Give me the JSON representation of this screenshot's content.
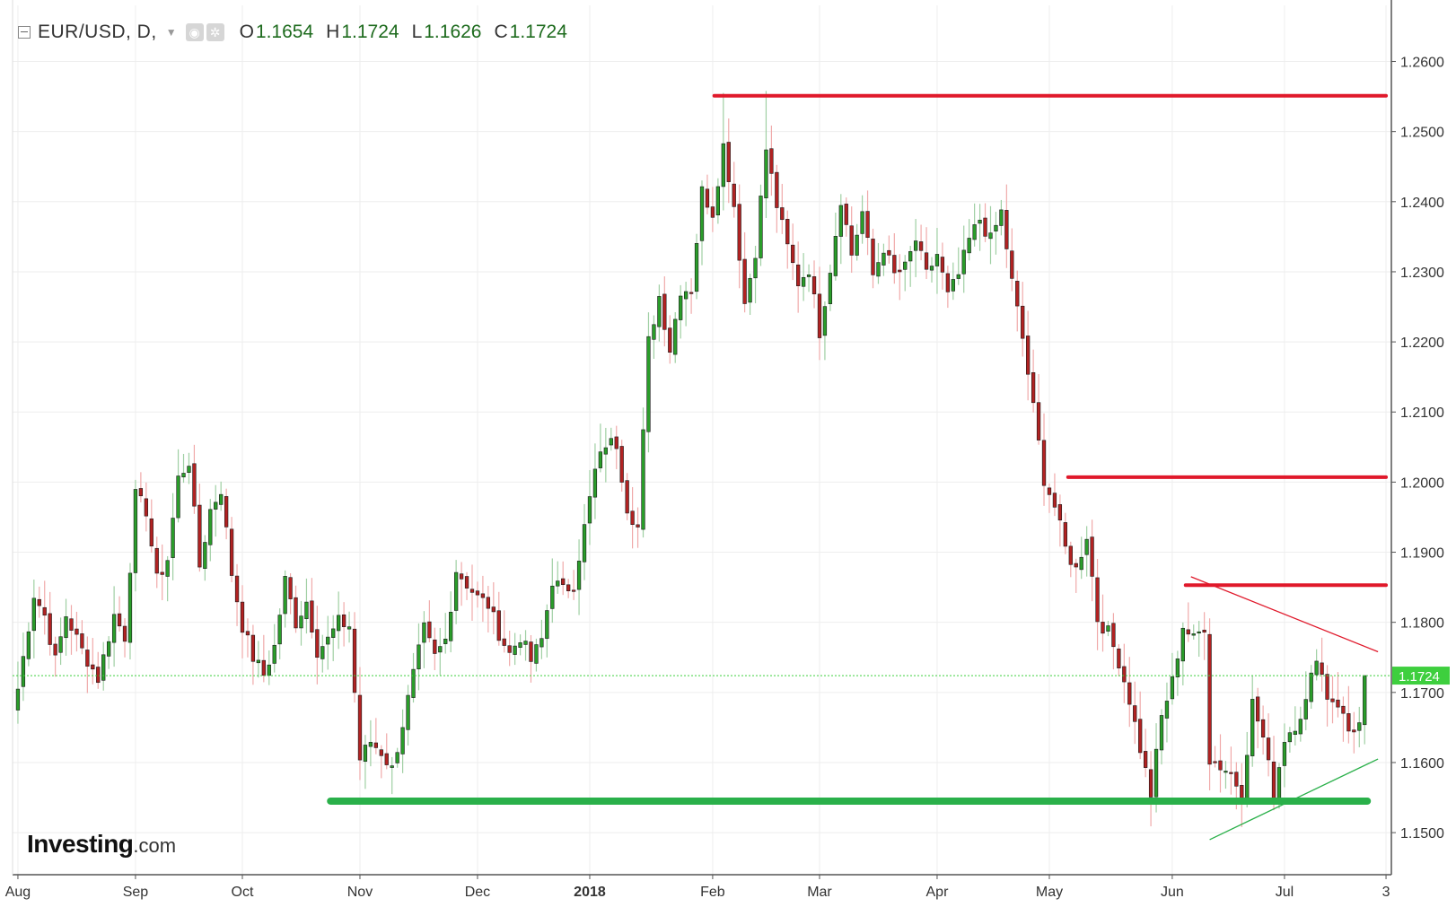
{
  "legend": {
    "symbol": "EUR/USD, D,",
    "o_key": "O",
    "o_val": "1.1654",
    "h_key": "H",
    "h_val": "1.1724",
    "l_key": "L",
    "l_val": "1.1626",
    "c_key": "C",
    "c_val": "1.1724"
  },
  "brand": {
    "name": "Investing",
    "suffix": ".com"
  },
  "colors": {
    "up": "#2a9d2a",
    "down": "#b22222",
    "resistance": "#e0192b",
    "support": "#2ab04a",
    "price_marker": "#3ecf3e",
    "grid": "#eeeeee"
  },
  "chart_data": {
    "type": "candlestick",
    "instrument": "EUR/USD",
    "timeframe": "D",
    "ylim": [
      1.144,
      1.268
    ],
    "y_ticks": [
      {
        "value": 1.26,
        "label": "1.2600"
      },
      {
        "value": 1.25,
        "label": "1.2500"
      },
      {
        "value": 1.24,
        "label": "1.2400"
      },
      {
        "value": 1.23,
        "label": "1.2300"
      },
      {
        "value": 1.22,
        "label": "1.2200"
      },
      {
        "value": 1.21,
        "label": "1.2100"
      },
      {
        "value": 1.2,
        "label": "1.2000"
      },
      {
        "value": 1.19,
        "label": "1.1900"
      },
      {
        "value": 1.18,
        "label": "1.1800"
      },
      {
        "value": 1.17,
        "label": "1.1700"
      },
      {
        "value": 1.16,
        "label": "1.1600"
      },
      {
        "value": 1.15,
        "label": "1.1500"
      }
    ],
    "x_ticks": [
      {
        "index": 0,
        "label": "Aug",
        "bold": false
      },
      {
        "index": 22,
        "label": "Sep",
        "bold": false
      },
      {
        "index": 42,
        "label": "Oct",
        "bold": false
      },
      {
        "index": 64,
        "label": "Nov",
        "bold": false
      },
      {
        "index": 86,
        "label": "Dec",
        "bold": false
      },
      {
        "index": 107,
        "label": "2018",
        "bold": true
      },
      {
        "index": 130,
        "label": "Feb",
        "bold": false
      },
      {
        "index": 150,
        "label": "Mar",
        "bold": false
      },
      {
        "index": 172,
        "label": "Apr",
        "bold": false
      },
      {
        "index": 193,
        "label": "May",
        "bold": false
      },
      {
        "index": 216,
        "label": "Jun",
        "bold": false
      },
      {
        "index": 237,
        "label": "Jul",
        "bold": false
      },
      {
        "index": 256,
        "label": "3",
        "bold": false
      }
    ],
    "x_range": [
      -1,
      257
    ],
    "last_price": {
      "value": 1.1724,
      "label": "1.1724"
    },
    "keypoints": [
      [
        0,
        1.1705
      ],
      [
        3,
        1.184
      ],
      [
        5,
        1.181
      ],
      [
        7,
        1.1745
      ],
      [
        9,
        1.181
      ],
      [
        12,
        1.176
      ],
      [
        15,
        1.172
      ],
      [
        18,
        1.181
      ],
      [
        20,
        1.178
      ],
      [
        22,
        1.198
      ],
      [
        24,
        1.196
      ],
      [
        26,
        1.186
      ],
      [
        28,
        1.189
      ],
      [
        30,
        1.2005
      ],
      [
        32,
        1.203
      ],
      [
        34,
        1.188
      ],
      [
        36,
        1.196
      ],
      [
        38,
        1.199
      ],
      [
        40,
        1.187
      ],
      [
        42,
        1.1795
      ],
      [
        44,
        1.175
      ],
      [
        46,
        1.1725
      ],
      [
        48,
        1.1765
      ],
      [
        50,
        1.186
      ],
      [
        52,
        1.18
      ],
      [
        54,
        1.183
      ],
      [
        56,
        1.176
      ],
      [
        58,
        1.1775
      ],
      [
        60,
        1.18
      ],
      [
        62,
        1.1795
      ],
      [
        64,
        1.1605
      ],
      [
        66,
        1.163
      ],
      [
        68,
        1.1615
      ],
      [
        70,
        1.159
      ],
      [
        72,
        1.1655
      ],
      [
        74,
        1.1725
      ],
      [
        76,
        1.179
      ],
      [
        78,
        1.175
      ],
      [
        80,
        1.1775
      ],
      [
        82,
        1.1875
      ],
      [
        84,
        1.1855
      ],
      [
        86,
        1.1835
      ],
      [
        88,
        1.1825
      ],
      [
        90,
        1.1785
      ],
      [
        92,
        1.1755
      ],
      [
        94,
        1.178
      ],
      [
        96,
        1.1745
      ],
      [
        98,
        1.1775
      ],
      [
        100,
        1.186
      ],
      [
        102,
        1.1845
      ],
      [
        104,
        1.1855
      ],
      [
        106,
        1.1935
      ],
      [
        108,
        1.2015
      ],
      [
        110,
        1.2055
      ],
      [
        112,
        1.2055
      ],
      [
        114,
        1.1965
      ],
      [
        116,
        1.1935
      ],
      [
        118,
        1.22
      ],
      [
        120,
        1.2265
      ],
      [
        122,
        1.219
      ],
      [
        124,
        1.2275
      ],
      [
        126,
        1.2275
      ],
      [
        128,
        1.2415
      ],
      [
        130,
        1.2385
      ],
      [
        132,
        1.248
      ],
      [
        134,
        1.2395
      ],
      [
        136,
        1.2255
      ],
      [
        138,
        1.233
      ],
      [
        140,
        1.2475
      ],
      [
        142,
        1.2395
      ],
      [
        144,
        1.2335
      ],
      [
        146,
        1.2285
      ],
      [
        148,
        1.2305
      ],
      [
        150,
        1.2215
      ],
      [
        152,
        1.2305
      ],
      [
        154,
        1.2405
      ],
      [
        156,
        1.2325
      ],
      [
        158,
        1.2385
      ],
      [
        160,
        1.2295
      ],
      [
        162,
        1.2335
      ],
      [
        164,
        1.2295
      ],
      [
        166,
        1.2305
      ],
      [
        168,
        1.2345
      ],
      [
        170,
        1.2295
      ],
      [
        172,
        1.2325
      ],
      [
        174,
        1.2265
      ],
      [
        176,
        1.2295
      ],
      [
        178,
        1.2345
      ],
      [
        180,
        1.2375
      ],
      [
        182,
        1.2345
      ],
      [
        184,
        1.2385
      ],
      [
        186,
        1.2285
      ],
      [
        188,
        1.2205
      ],
      [
        190,
        1.2105
      ],
      [
        192,
        1.2005
      ],
      [
        194,
        1.1965
      ],
      [
        196,
        1.1905
      ],
      [
        198,
        1.1875
      ],
      [
        200,
        1.1925
      ],
      [
        202,
        1.1805
      ],
      [
        204,
        1.1785
      ],
      [
        206,
        1.1745
      ],
      [
        208,
        1.169
      ],
      [
        210,
        1.162
      ],
      [
        212,
        1.1555
      ],
      [
        214,
        1.1665
      ],
      [
        216,
        1.1715
      ],
      [
        218,
        1.1795
      ],
      [
        220,
        1.1775
      ],
      [
        222,
        1.1795
      ],
      [
        223,
        1.1605
      ],
      [
        225,
        1.1595
      ],
      [
        227,
        1.1585
      ],
      [
        229,
        1.1555
      ],
      [
        231,
        1.1685
      ],
      [
        233,
        1.1635
      ],
      [
        235,
        1.1555
      ],
      [
        237,
        1.1635
      ],
      [
        239,
        1.1655
      ],
      [
        241,
        1.1685
      ],
      [
        243,
        1.1755
      ],
      [
        245,
        1.1695
      ],
      [
        247,
        1.1685
      ],
      [
        249,
        1.1645
      ],
      [
        251,
        1.1654
      ],
      [
        252,
        1.1724
      ]
    ],
    "annotations": [
      {
        "type": "horizontal",
        "color": "red",
        "x0": 130.3,
        "x1": 256,
        "y": 1.2551,
        "thick": true
      },
      {
        "type": "horizontal",
        "color": "red",
        "x0": 196.5,
        "x1": 256,
        "y": 1.2007,
        "thick": true
      },
      {
        "type": "horizontal",
        "color": "red",
        "x0": 218.5,
        "x1": 256,
        "y": 1.1853,
        "thick": true
      },
      {
        "type": "horizontal",
        "color": "green",
        "x0": 58.5,
        "x1": 252.5,
        "y": 1.1545,
        "thick": true
      },
      {
        "type": "trend",
        "color": "red",
        "x0": 219.5,
        "y0": 1.1865,
        "x1": 254.5,
        "y1": 1.1758
      },
      {
        "type": "trend",
        "color": "green",
        "x0": 223,
        "y0": 1.149,
        "x1": 254.5,
        "y1": 1.1605
      }
    ]
  }
}
